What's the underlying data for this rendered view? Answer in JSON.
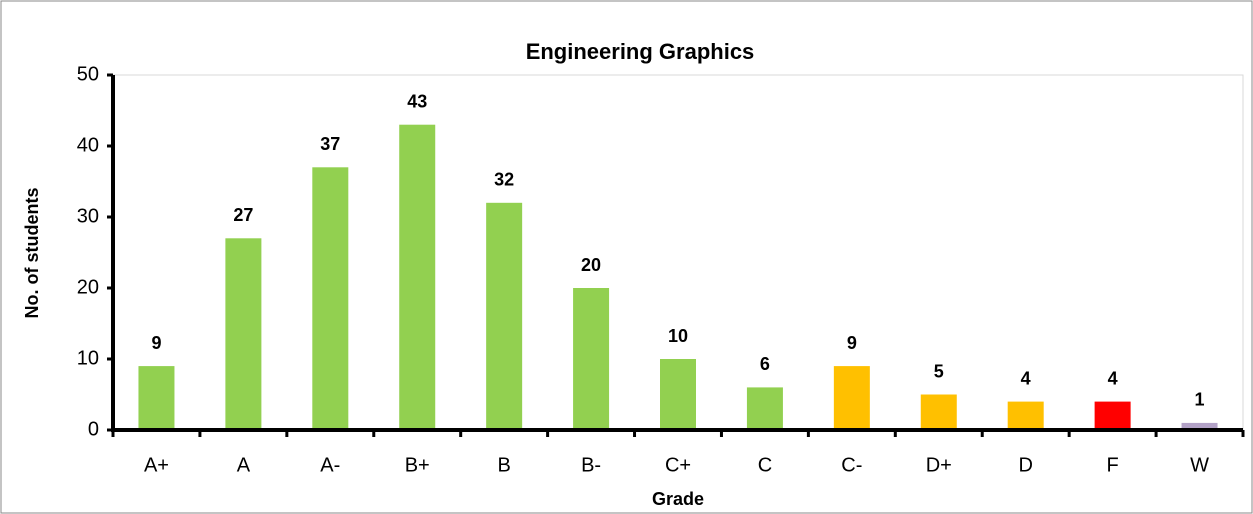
{
  "chart_data": {
    "type": "bar",
    "title": "Engineering Graphics",
    "x_label": "Grade",
    "y_label": "No. of students",
    "categories": [
      "A+",
      "A",
      "A-",
      "B+",
      "B",
      "B-",
      "C+",
      "C",
      "C-",
      "D+",
      "D",
      "F",
      "W"
    ],
    "values": [
      9,
      27,
      37,
      43,
      32,
      20,
      10,
      6,
      9,
      5,
      4,
      4,
      1
    ],
    "colors": [
      "#92d050",
      "#92d050",
      "#92d050",
      "#92d050",
      "#92d050",
      "#92d050",
      "#92d050",
      "#92d050",
      "#ffc000",
      "#ffc000",
      "#ffc000",
      "#ff0000",
      "#b3a2c7"
    ],
    "ylim": [
      0,
      50
    ],
    "yticks": [
      0,
      10,
      20,
      30,
      40,
      50
    ],
    "grid": false
  }
}
